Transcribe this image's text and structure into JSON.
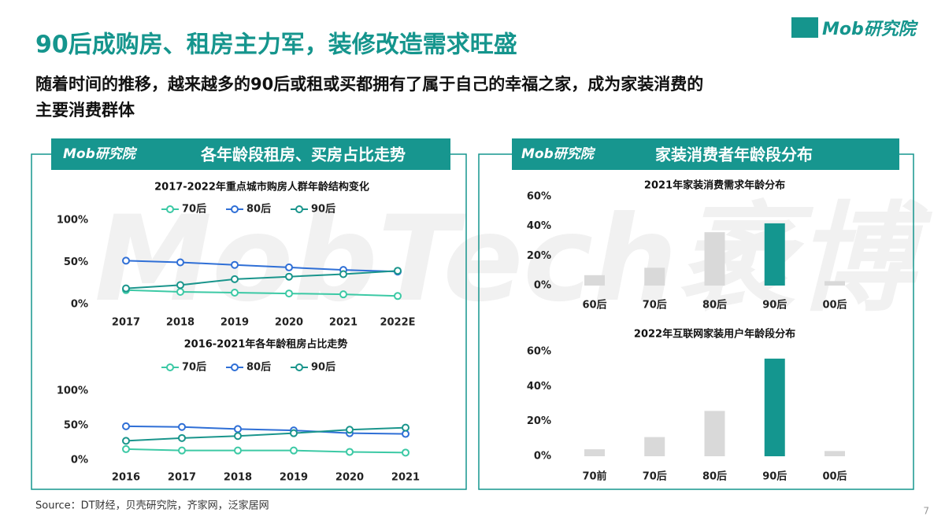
{
  "header": {
    "title": "90后成购房、租房主力军，装修改造需求旺盛",
    "subtitle_lines": [
      "随着时间的推移，越来越多的90后或租或买都拥有了属于自己的幸福之家，成为家装消费的",
      "主要消费群体"
    ],
    "logo": "Mob研究院",
    "watermark": "MobTech袤博",
    "left_panel": "各年龄段租房、买房占比走势",
    "right_panel": "家装消费者年龄段分布",
    "panel_logo": "Mob研究院",
    "source": "Source：DT财经，贝壳研究院，齐家网，泛家居网",
    "page": "7"
  },
  "chart_data": [
    {
      "type": "line",
      "title": "2017-2022年重点城市购房人群年龄结构变化",
      "categories": [
        "2017",
        "2018",
        "2019",
        "2020",
        "2021",
        "2022E"
      ],
      "series": [
        {
          "name": "70后",
          "color": "#3cc9a5",
          "values": [
            17,
            15,
            14,
            13,
            12,
            10
          ]
        },
        {
          "name": "80后",
          "color": "#2f6fd6",
          "values": [
            52,
            50,
            47,
            44,
            41,
            39
          ]
        },
        {
          "name": "90后",
          "color": "#1a958c",
          "values": [
            19,
            23,
            30,
            33,
            36,
            40
          ]
        }
      ],
      "ylim": [
        0,
        100
      ],
      "yticks": [
        {
          "value": 0,
          "label": "0%"
        },
        {
          "value": 50,
          "label": "50%"
        },
        {
          "value": 100,
          "label": "100%"
        }
      ],
      "grid": false
    },
    {
      "type": "line",
      "title": "2016-2021年各年龄租房占比走势",
      "categories": [
        "2016",
        "2017",
        "2018",
        "2019",
        "2020",
        "2021"
      ],
      "series": [
        {
          "name": "70后",
          "color": "#3cc9a5",
          "values": [
            16,
            14,
            14,
            14,
            12,
            11
          ]
        },
        {
          "name": "80后",
          "color": "#2f6fd6",
          "values": [
            49,
            48,
            45,
            43,
            39,
            38
          ]
        },
        {
          "name": "90后",
          "color": "#1a958c",
          "values": [
            28,
            32,
            35,
            39,
            44,
            47
          ]
        }
      ],
      "ylim": [
        0,
        100
      ],
      "yticks": [
        {
          "value": 0,
          "label": "0%"
        },
        {
          "value": 50,
          "label": "50%"
        },
        {
          "value": 100,
          "label": "100%"
        }
      ],
      "grid": false
    },
    {
      "type": "bar",
      "title": "2021年家装消费需求年龄分布",
      "categories": [
        "60后",
        "70后",
        "80后",
        "90后",
        "00后"
      ],
      "values": [
        7,
        12,
        36,
        42,
        3
      ],
      "colors": [
        "#d9d9d9",
        "#d9d9d9",
        "#d9d9d9",
        "#14968f",
        "#d9d9d9"
      ],
      "ylim": [
        0,
        60
      ],
      "yticks": [
        {
          "value": 0,
          "label": "0%"
        },
        {
          "value": 20,
          "label": "20%"
        },
        {
          "value": 40,
          "label": "40%"
        },
        {
          "value": 60,
          "label": "60%"
        }
      ],
      "grid": false
    },
    {
      "type": "bar",
      "title": "2022年互联网家装用户年龄段分布",
      "categories": [
        "70前",
        "70后",
        "80后",
        "90后",
        "00后"
      ],
      "values": [
        4,
        11,
        26,
        56,
        3
      ],
      "colors": [
        "#d9d9d9",
        "#d9d9d9",
        "#d9d9d9",
        "#14968f",
        "#d9d9d9"
      ],
      "ylim": [
        0,
        60
      ],
      "yticks": [
        {
          "value": 0,
          "label": "0%"
        },
        {
          "value": 20,
          "label": "20%"
        },
        {
          "value": 40,
          "label": "40%"
        },
        {
          "value": 60,
          "label": "60%"
        }
      ],
      "grid": false
    }
  ]
}
